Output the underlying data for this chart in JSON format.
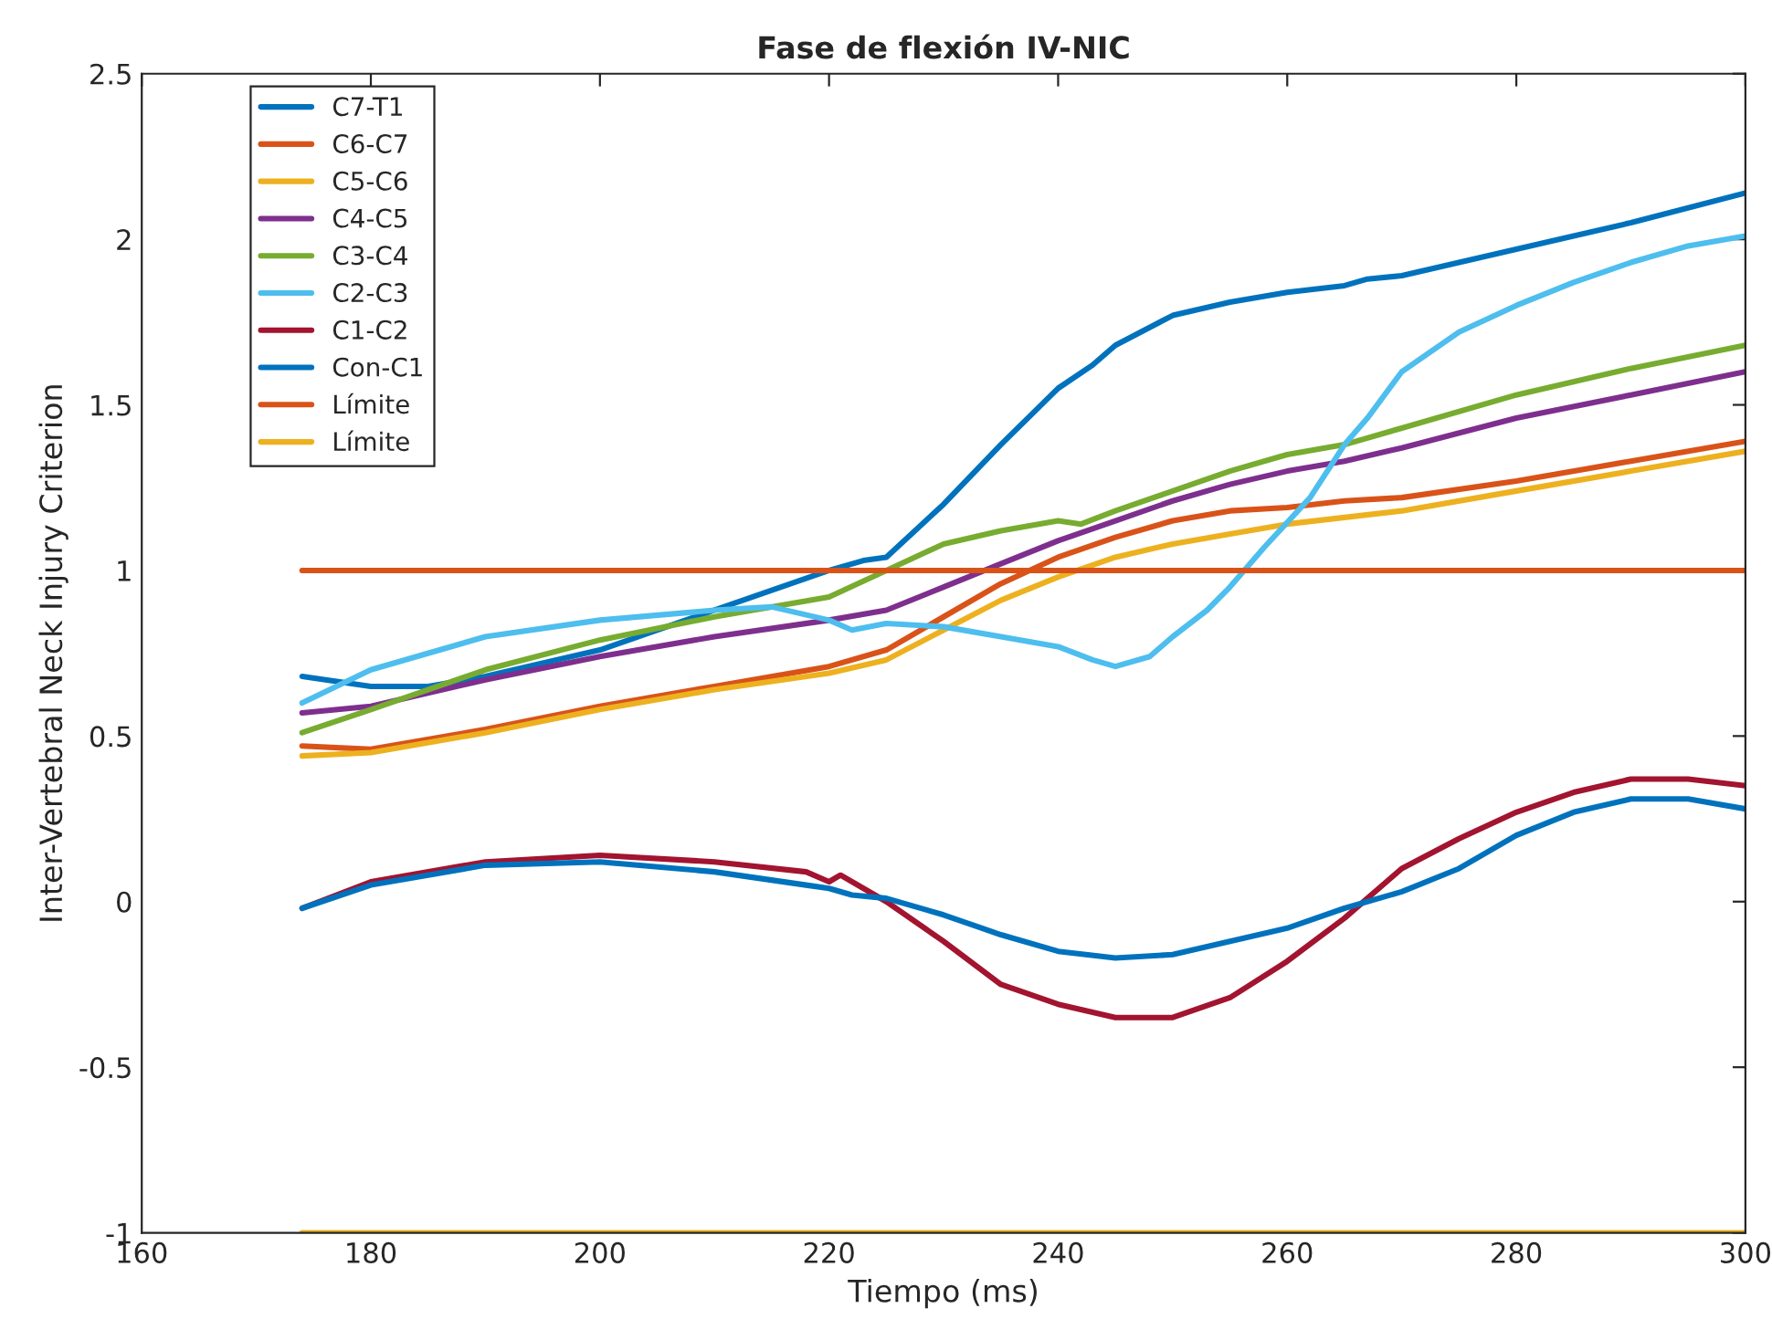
{
  "chart_data": {
    "type": "line",
    "title": "Fase de flexión IV-NIC",
    "xlabel": "Tiempo (ms)",
    "ylabel": "Inter-Vertebral Neck Injury Criterion",
    "xlim": [
      160,
      300
    ],
    "ylim": [
      -1,
      2.5
    ],
    "xticks": [
      160,
      180,
      200,
      220,
      240,
      260,
      280,
      300
    ],
    "yticks": [
      -1,
      -0.5,
      0,
      0.5,
      1,
      1.5,
      2,
      2.5
    ],
    "grid": false,
    "legend": "top left",
    "line_style": "solid",
    "marker": "none",
    "series": [
      {
        "name": "C7-T1",
        "color": "#0072bd",
        "x": [
          174,
          180,
          185,
          190,
          200,
          210,
          220,
          223,
          225,
          230,
          235,
          240,
          243,
          245,
          250,
          255,
          260,
          265,
          267,
          270,
          280,
          290,
          300
        ],
        "values": [
          0.68,
          0.65,
          0.65,
          0.68,
          0.76,
          0.88,
          1.0,
          1.03,
          1.04,
          1.2,
          1.38,
          1.55,
          1.62,
          1.68,
          1.77,
          1.81,
          1.84,
          1.86,
          1.88,
          1.89,
          1.97,
          2.05,
          2.14
        ]
      },
      {
        "name": "C6-C7",
        "color": "#d95319",
        "x": [
          174,
          180,
          190,
          200,
          210,
          220,
          225,
          230,
          235,
          240,
          245,
          250,
          255,
          260,
          265,
          270,
          280,
          290,
          300
        ],
        "values": [
          0.47,
          0.46,
          0.52,
          0.59,
          0.65,
          0.71,
          0.76,
          0.86,
          0.96,
          1.04,
          1.1,
          1.15,
          1.18,
          1.19,
          1.21,
          1.22,
          1.27,
          1.33,
          1.39
        ]
      },
      {
        "name": "C5-C6",
        "color": "#edb120",
        "x": [
          174,
          180,
          190,
          200,
          210,
          220,
          225,
          230,
          235,
          240,
          245,
          250,
          255,
          260,
          270,
          280,
          290,
          300
        ],
        "values": [
          0.44,
          0.45,
          0.51,
          0.58,
          0.64,
          0.69,
          0.73,
          0.82,
          0.91,
          0.98,
          1.04,
          1.08,
          1.11,
          1.14,
          1.18,
          1.24,
          1.3,
          1.36
        ]
      },
      {
        "name": "C4-C5",
        "color": "#7e2f8e",
        "x": [
          174,
          180,
          190,
          200,
          210,
          220,
          225,
          230,
          235,
          240,
          245,
          250,
          255,
          260,
          265,
          270,
          280,
          290,
          300
        ],
        "values": [
          0.57,
          0.59,
          0.67,
          0.74,
          0.8,
          0.85,
          0.88,
          0.95,
          1.02,
          1.09,
          1.15,
          1.21,
          1.26,
          1.3,
          1.33,
          1.37,
          1.46,
          1.53,
          1.6
        ]
      },
      {
        "name": "C3-C4",
        "color": "#77ac30",
        "x": [
          174,
          180,
          190,
          200,
          210,
          220,
          225,
          230,
          235,
          240,
          242,
          245,
          250,
          255,
          260,
          265,
          270,
          280,
          290,
          300
        ],
        "values": [
          0.51,
          0.58,
          0.7,
          0.79,
          0.86,
          0.92,
          1.0,
          1.08,
          1.12,
          1.15,
          1.14,
          1.18,
          1.24,
          1.3,
          1.35,
          1.38,
          1.43,
          1.53,
          1.61,
          1.68
        ]
      },
      {
        "name": "C2-C3",
        "color": "#4dbeee",
        "x": [
          174,
          180,
          190,
          200,
          210,
          215,
          220,
          222,
          225,
          230,
          235,
          240,
          243,
          245,
          248,
          250,
          253,
          255,
          258,
          262,
          265,
          267,
          270,
          275,
          280,
          285,
          290,
          295,
          300
        ],
        "values": [
          0.6,
          0.7,
          0.8,
          0.85,
          0.88,
          0.89,
          0.85,
          0.82,
          0.84,
          0.83,
          0.8,
          0.77,
          0.73,
          0.71,
          0.74,
          0.8,
          0.88,
          0.95,
          1.07,
          1.22,
          1.38,
          1.46,
          1.6,
          1.72,
          1.8,
          1.87,
          1.93,
          1.98,
          2.01
        ]
      },
      {
        "name": "C1-C2",
        "color": "#a2142f",
        "x": [
          174,
          180,
          190,
          200,
          210,
          218,
          220,
          221,
          225,
          230,
          235,
          240,
          245,
          250,
          255,
          260,
          265,
          270,
          275,
          280,
          285,
          290,
          295,
          300
        ],
        "values": [
          -0.02,
          0.06,
          0.12,
          0.14,
          0.12,
          0.09,
          0.06,
          0.08,
          0.0,
          -0.12,
          -0.25,
          -0.31,
          -0.35,
          -0.35,
          -0.29,
          -0.18,
          -0.05,
          0.1,
          0.19,
          0.27,
          0.33,
          0.37,
          0.37,
          0.35
        ]
      },
      {
        "name": "Con-C1",
        "color": "#0072bd",
        "x": [
          174,
          180,
          190,
          200,
          210,
          218,
          220,
          222,
          225,
          230,
          235,
          240,
          245,
          250,
          255,
          260,
          265,
          270,
          275,
          280,
          285,
          290,
          295,
          300
        ],
        "values": [
          -0.02,
          0.05,
          0.11,
          0.12,
          0.09,
          0.05,
          0.04,
          0.02,
          0.01,
          -0.04,
          -0.1,
          -0.15,
          -0.17,
          -0.16,
          -0.12,
          -0.08,
          -0.02,
          0.03,
          0.1,
          0.2,
          0.27,
          0.31,
          0.31,
          0.28
        ]
      },
      {
        "name": "Límite",
        "color": "#d95319",
        "x": [
          174,
          300
        ],
        "values": [
          1,
          1
        ]
      },
      {
        "name": "Límite",
        "color": "#edb120",
        "x": [
          174,
          300
        ],
        "values": [
          -1,
          -1
        ]
      }
    ]
  }
}
